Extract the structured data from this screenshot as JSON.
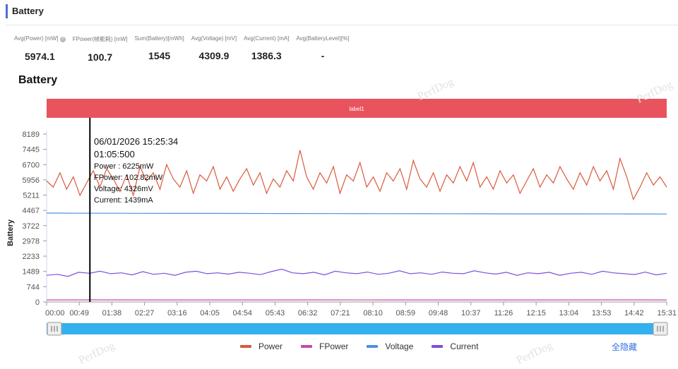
{
  "header": {
    "title": "Battery"
  },
  "stats": [
    {
      "label": "Avg(Power) [mW]",
      "value": "5974.1",
      "help": true
    },
    {
      "label": "FPower(帧能耗) [mW]",
      "value": "100.7"
    },
    {
      "label": "Sum(Battery)[mWh]",
      "value": "1545"
    },
    {
      "label": "Avg(Voltage) [mV]",
      "value": "4309.9"
    },
    {
      "label": "Avg(Current) [mA]",
      "value": "1386.3"
    },
    {
      "label": "Avg(BatteryLevel)[%]",
      "value": "-"
    }
  ],
  "chart_title": "Battery",
  "label_band": "label1",
  "watermark": "PerfDog",
  "tooltip": {
    "datetime": "06/01/2026 15:25:34",
    "elapsed": "01:05:500",
    "rows": [
      "Power   : 6225mW",
      "FPower: 102.82mW",
      "Voltage: 4326mV",
      "Current: 1439mA"
    ]
  },
  "legend_hide_all": "全隐藏",
  "chart_data": {
    "type": "line",
    "ylabel": "Battery",
    "ylim": [
      0,
      8189
    ],
    "yticks": [
      "8189",
      "7445",
      "6700",
      "5956",
      "5211",
      "4467",
      "3722",
      "2978",
      "2233",
      "1489",
      "744",
      "0"
    ],
    "xticks": [
      "00:00",
      "00:49",
      "01:38",
      "02:27",
      "03:16",
      "04:05",
      "04:54",
      "05:43",
      "06:32",
      "07:21",
      "08:10",
      "08:59",
      "09:48",
      "10:37",
      "11:26",
      "12:15",
      "13:04",
      "13:53",
      "14:42",
      "15:31"
    ],
    "x_range_seconds": [
      0,
      931
    ],
    "cursor_seconds": 65,
    "series": [
      {
        "name": "Power",
        "color": "#d9593c",
        "values": [
          5900,
          5600,
          6300,
          5500,
          6100,
          5200,
          5800,
          6400,
          5600,
          6500,
          6000,
          5400,
          6200,
          5200,
          6600,
          5900,
          6300,
          5500,
          6700,
          6000,
          5600,
          6400,
          5300,
          6200,
          5900,
          6600,
          5500,
          6100,
          5400,
          6000,
          6500,
          5700,
          6300,
          5300,
          6000,
          5600,
          6400,
          5900,
          7400,
          6100,
          5500,
          6300,
          5800,
          6600,
          5300,
          6200,
          5900,
          6800,
          5600,
          6100,
          5400,
          6300,
          5900,
          6500,
          5500,
          6900,
          6000,
          5600,
          6300,
          5400,
          6200,
          5800,
          6600,
          5900,
          6800,
          5600,
          6100,
          5500,
          6400,
          5800,
          6200,
          5300,
          5900,
          6500,
          5600,
          6200,
          5800,
          6600,
          6000,
          5500,
          6300,
          5700,
          6600,
          5900,
          6400,
          5500,
          7000,
          6100,
          5000,
          5600,
          6300,
          5700,
          6100,
          5600
        ]
      },
      {
        "name": "FPower",
        "color": "#c847b0",
        "values": [
          100,
          102,
          99,
          101,
          100,
          103,
          100,
          99,
          101,
          100,
          102,
          100
        ]
      },
      {
        "name": "Voltage",
        "color": "#4a90e2",
        "values": [
          4335,
          4330,
          4326,
          4322,
          4318,
          4315,
          4312,
          4309,
          4305,
          4302,
          4299,
          4296,
          4293,
          4290
        ]
      },
      {
        "name": "Current",
        "color": "#7b4fe0",
        "values": [
          1300,
          1350,
          1250,
          1450,
          1400,
          1500,
          1380,
          1420,
          1320,
          1480,
          1350,
          1400,
          1300,
          1450,
          1500,
          1380,
          1420,
          1360,
          1450,
          1400,
          1330,
          1480,
          1600,
          1420,
          1380,
          1450,
          1320,
          1500,
          1420,
          1380,
          1460,
          1350,
          1400,
          1520,
          1380,
          1420,
          1350,
          1460,
          1400,
          1380,
          1520,
          1420,
          1360,
          1450,
          1300,
          1420,
          1380,
          1450,
          1300,
          1400,
          1450,
          1350,
          1500,
          1420,
          1380,
          1340,
          1460,
          1320,
          1400
        ]
      }
    ]
  }
}
